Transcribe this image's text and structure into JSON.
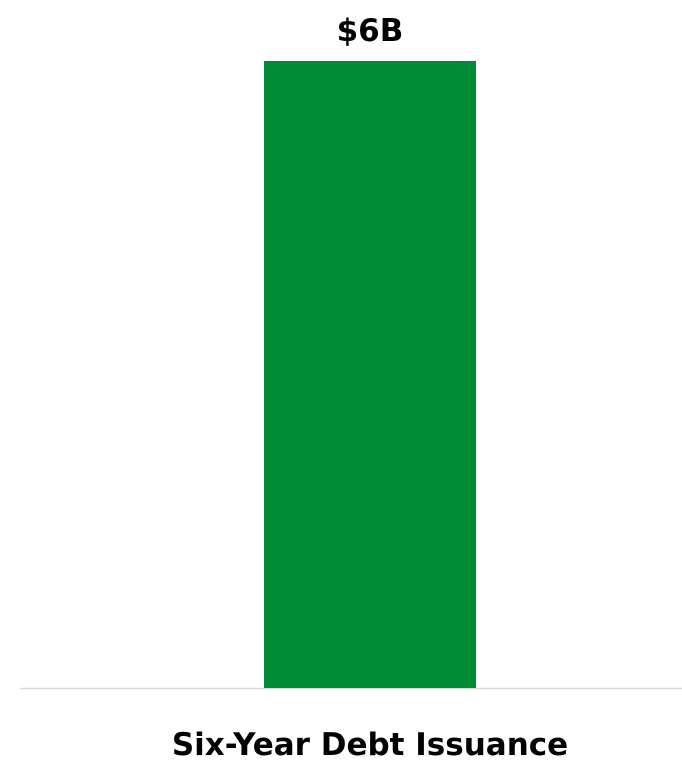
{
  "chart_data": {
    "type": "bar",
    "categories": [
      "Six-Year Debt Issuance"
    ],
    "values": [
      6
    ],
    "data_labels": [
      "$6B"
    ],
    "unit": "B",
    "ylim": [
      0,
      6
    ],
    "grid": false,
    "legend": "none",
    "title": "",
    "xlabel": "",
    "ylabel": ""
  },
  "colors": {
    "bar": "#008C36",
    "axis": "#D9D9D9",
    "text": "#000000"
  }
}
